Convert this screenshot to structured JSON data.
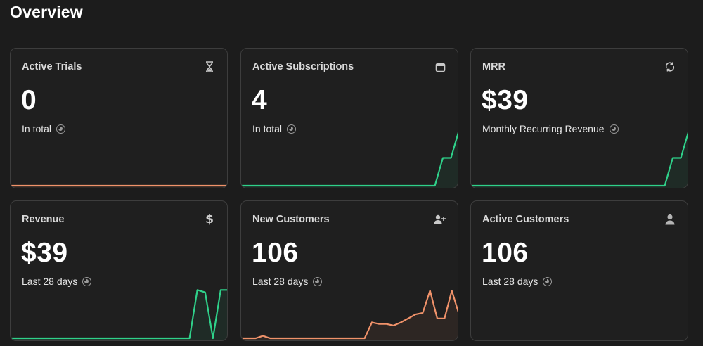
{
  "page": {
    "title": "Overview"
  },
  "colors": {
    "green": "#2fd18a",
    "orange": "#f0926a"
  },
  "cards": [
    {
      "title": "Active Trials",
      "value": "0",
      "sub": "In total",
      "icon": "hourglass-icon",
      "spark": {
        "color": "orange",
        "points": [
          0,
          0,
          0,
          0,
          0,
          0,
          0,
          0,
          0,
          0,
          0,
          0,
          0,
          0,
          0,
          0,
          0,
          0,
          0,
          0,
          0,
          0,
          0,
          0,
          0,
          0,
          0,
          0
        ],
        "max": 1
      }
    },
    {
      "title": "Active Subscriptions",
      "value": "4",
      "sub": "In total",
      "icon": "calendar-icon",
      "spark": {
        "color": "green",
        "points": [
          0,
          0,
          0,
          0,
          0,
          0,
          0,
          0,
          0,
          0,
          0,
          0,
          0,
          0,
          0,
          0,
          0,
          0,
          0,
          0,
          0,
          0,
          0,
          0,
          0,
          1,
          1,
          2
        ],
        "max": 2
      }
    },
    {
      "title": "MRR",
      "value": "$39",
      "sub": "Monthly Recurring Revenue",
      "icon": "refresh-icon",
      "spark": {
        "color": "green",
        "points": [
          0,
          0,
          0,
          0,
          0,
          0,
          0,
          0,
          0,
          0,
          0,
          0,
          0,
          0,
          0,
          0,
          0,
          0,
          0,
          0,
          0,
          0,
          0,
          0,
          0,
          1,
          1,
          2
        ],
        "max": 2
      }
    },
    {
      "title": "Revenue",
      "value": "$39",
      "sub": "Last 28 days",
      "icon": "dollar-icon",
      "spark": {
        "color": "green",
        "points": [
          0,
          0,
          0,
          0,
          0,
          0,
          0,
          0,
          0,
          0,
          0,
          0,
          0,
          0,
          0,
          0,
          0,
          0,
          0,
          0,
          0,
          0,
          0,
          0,
          2,
          1.9,
          0,
          2,
          2
        ],
        "max": 2.3
      }
    },
    {
      "title": "New Customers",
      "value": "106",
      "sub": "Last 28 days",
      "icon": "user-plus-icon",
      "spark": {
        "color": "orange",
        "points": [
          0,
          0,
          0,
          0.3,
          0,
          0,
          0,
          0,
          0,
          0,
          0,
          0,
          0,
          0,
          0,
          0,
          0,
          0,
          2,
          1.8,
          1.8,
          1.6,
          2,
          2.5,
          3,
          3.2,
          6,
          2.5,
          2.5,
          6,
          3
        ],
        "max": 7
      }
    },
    {
      "title": "Active Customers",
      "value": "106",
      "sub": "Last 28 days",
      "icon": "user-icon",
      "spark": null
    }
  ]
}
